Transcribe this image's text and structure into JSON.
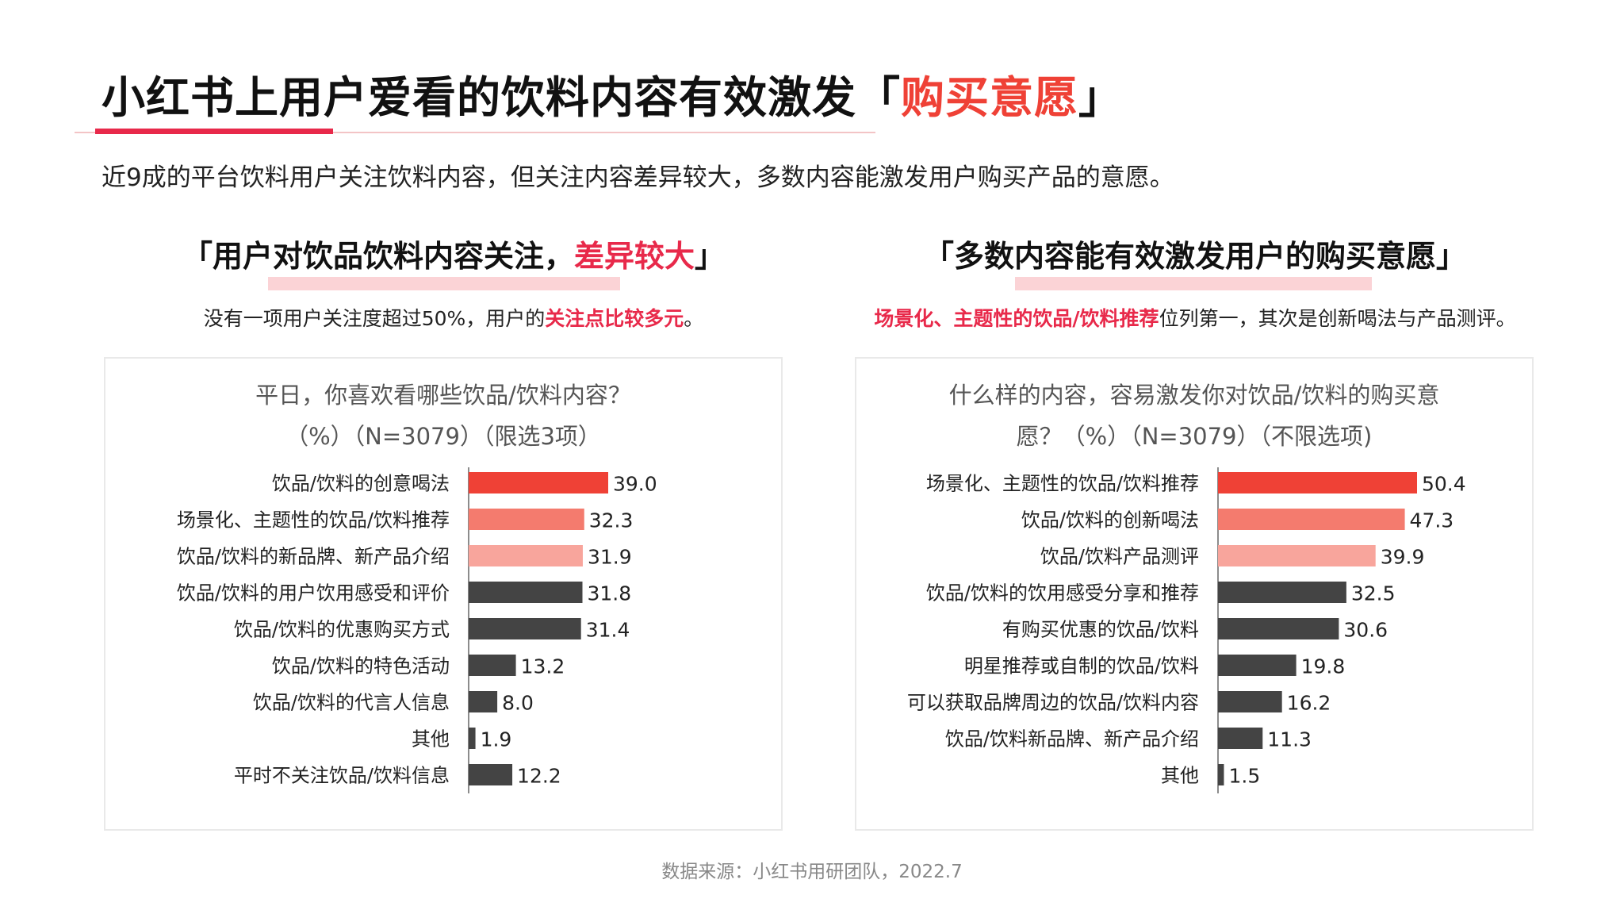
{
  "title": {
    "main": "小红书上用户爱看的饮料内容有效激发「",
    "highlight": "购买意愿",
    "end": "」"
  },
  "subtitle": "近9成的平台饮料用户关注饮料内容，但关注内容差异较大，多数内容能激发用户购买产品的意愿。",
  "left": {
    "heading": {
      "pre": "「用户对饮品饮料内容关注，",
      "highlight": "差异较大",
      "post": "」"
    },
    "note": {
      "pre": "没有一项用户关注度超过50%，用户的",
      "highlight": "关注点比较多元",
      "post": "。"
    },
    "question": {
      "line1": "平日，你喜欢看哪些饮品/饮料内容？",
      "line2": "（%）（N=3079）（限选3项）"
    }
  },
  "right": {
    "heading": {
      "pre": "「多数内容能有效激发用户的购买意愿」"
    },
    "note": {
      "highlight": "场景化、主题性的饮品/饮料推荐",
      "post": "位列第一，其次是创新喝法与产品测评。"
    },
    "question": {
      "line1": "什么样的内容，容易激发你对饮品/饮料的购买意",
      "line2": "愿？（%）（N=3079）（不限选项)"
    }
  },
  "source": "数据来源：小红书用研团队，2022.7",
  "colors": {
    "red": "#ef4136",
    "salmon": "#f47b6e",
    "pink": "#f8a59c",
    "dark": "#444444",
    "accent": "#e8294a"
  },
  "chart_data": [
    {
      "type": "bar",
      "orientation": "horizontal",
      "categories": [
        "饮品/饮料的创意喝法",
        "场景化、主题性的饮品/饮料推荐",
        "饮品/饮料的新品牌、新产品介绍",
        "饮品/饮料的用户饮用感受和评价",
        "饮品/饮料的优惠购买方式",
        "饮品/饮料的特色活动",
        "饮品/饮料的代言人信息",
        "其他",
        "平时不关注饮品/饮料信息"
      ],
      "values": [
        39.0,
        32.3,
        31.9,
        31.8,
        31.4,
        13.2,
        8.0,
        1.9,
        12.2
      ],
      "labels": [
        "39.0",
        "32.3",
        "31.9",
        "31.8",
        "31.4",
        "13.2",
        "8.0",
        "1.9",
        "12.2"
      ],
      "bar_colors": [
        "#ef4136",
        "#f47b6e",
        "#f8a59c",
        "#444444",
        "#444444",
        "#444444",
        "#444444",
        "#444444",
        "#444444"
      ],
      "xlim": [
        0,
        80
      ]
    },
    {
      "type": "bar",
      "orientation": "horizontal",
      "categories": [
        "场景化、主题性的饮品/饮料推荐",
        "饮品/饮料的创新喝法",
        "饮品/饮料产品测评",
        "饮品/饮料的饮用感受分享和推荐",
        "有购买优惠的饮品/饮料",
        "明星推荐或自制的饮品/饮料",
        "可以获取品牌周边的饮品/饮料内容",
        "饮品/饮料新品牌、新产品介绍",
        "其他"
      ],
      "values": [
        50.4,
        47.3,
        39.9,
        32.5,
        30.6,
        19.8,
        16.2,
        11.3,
        1.5
      ],
      "labels": [
        "50.4",
        "47.3",
        "39.9",
        "32.5",
        "30.6",
        "19.8",
        "16.2",
        "11.3",
        "1.5"
      ],
      "bar_colors": [
        "#ef4136",
        "#f47b6e",
        "#f8a59c",
        "#444444",
        "#444444",
        "#444444",
        "#444444",
        "#444444",
        "#444444"
      ],
      "xlim": [
        0,
        100
      ]
    }
  ]
}
